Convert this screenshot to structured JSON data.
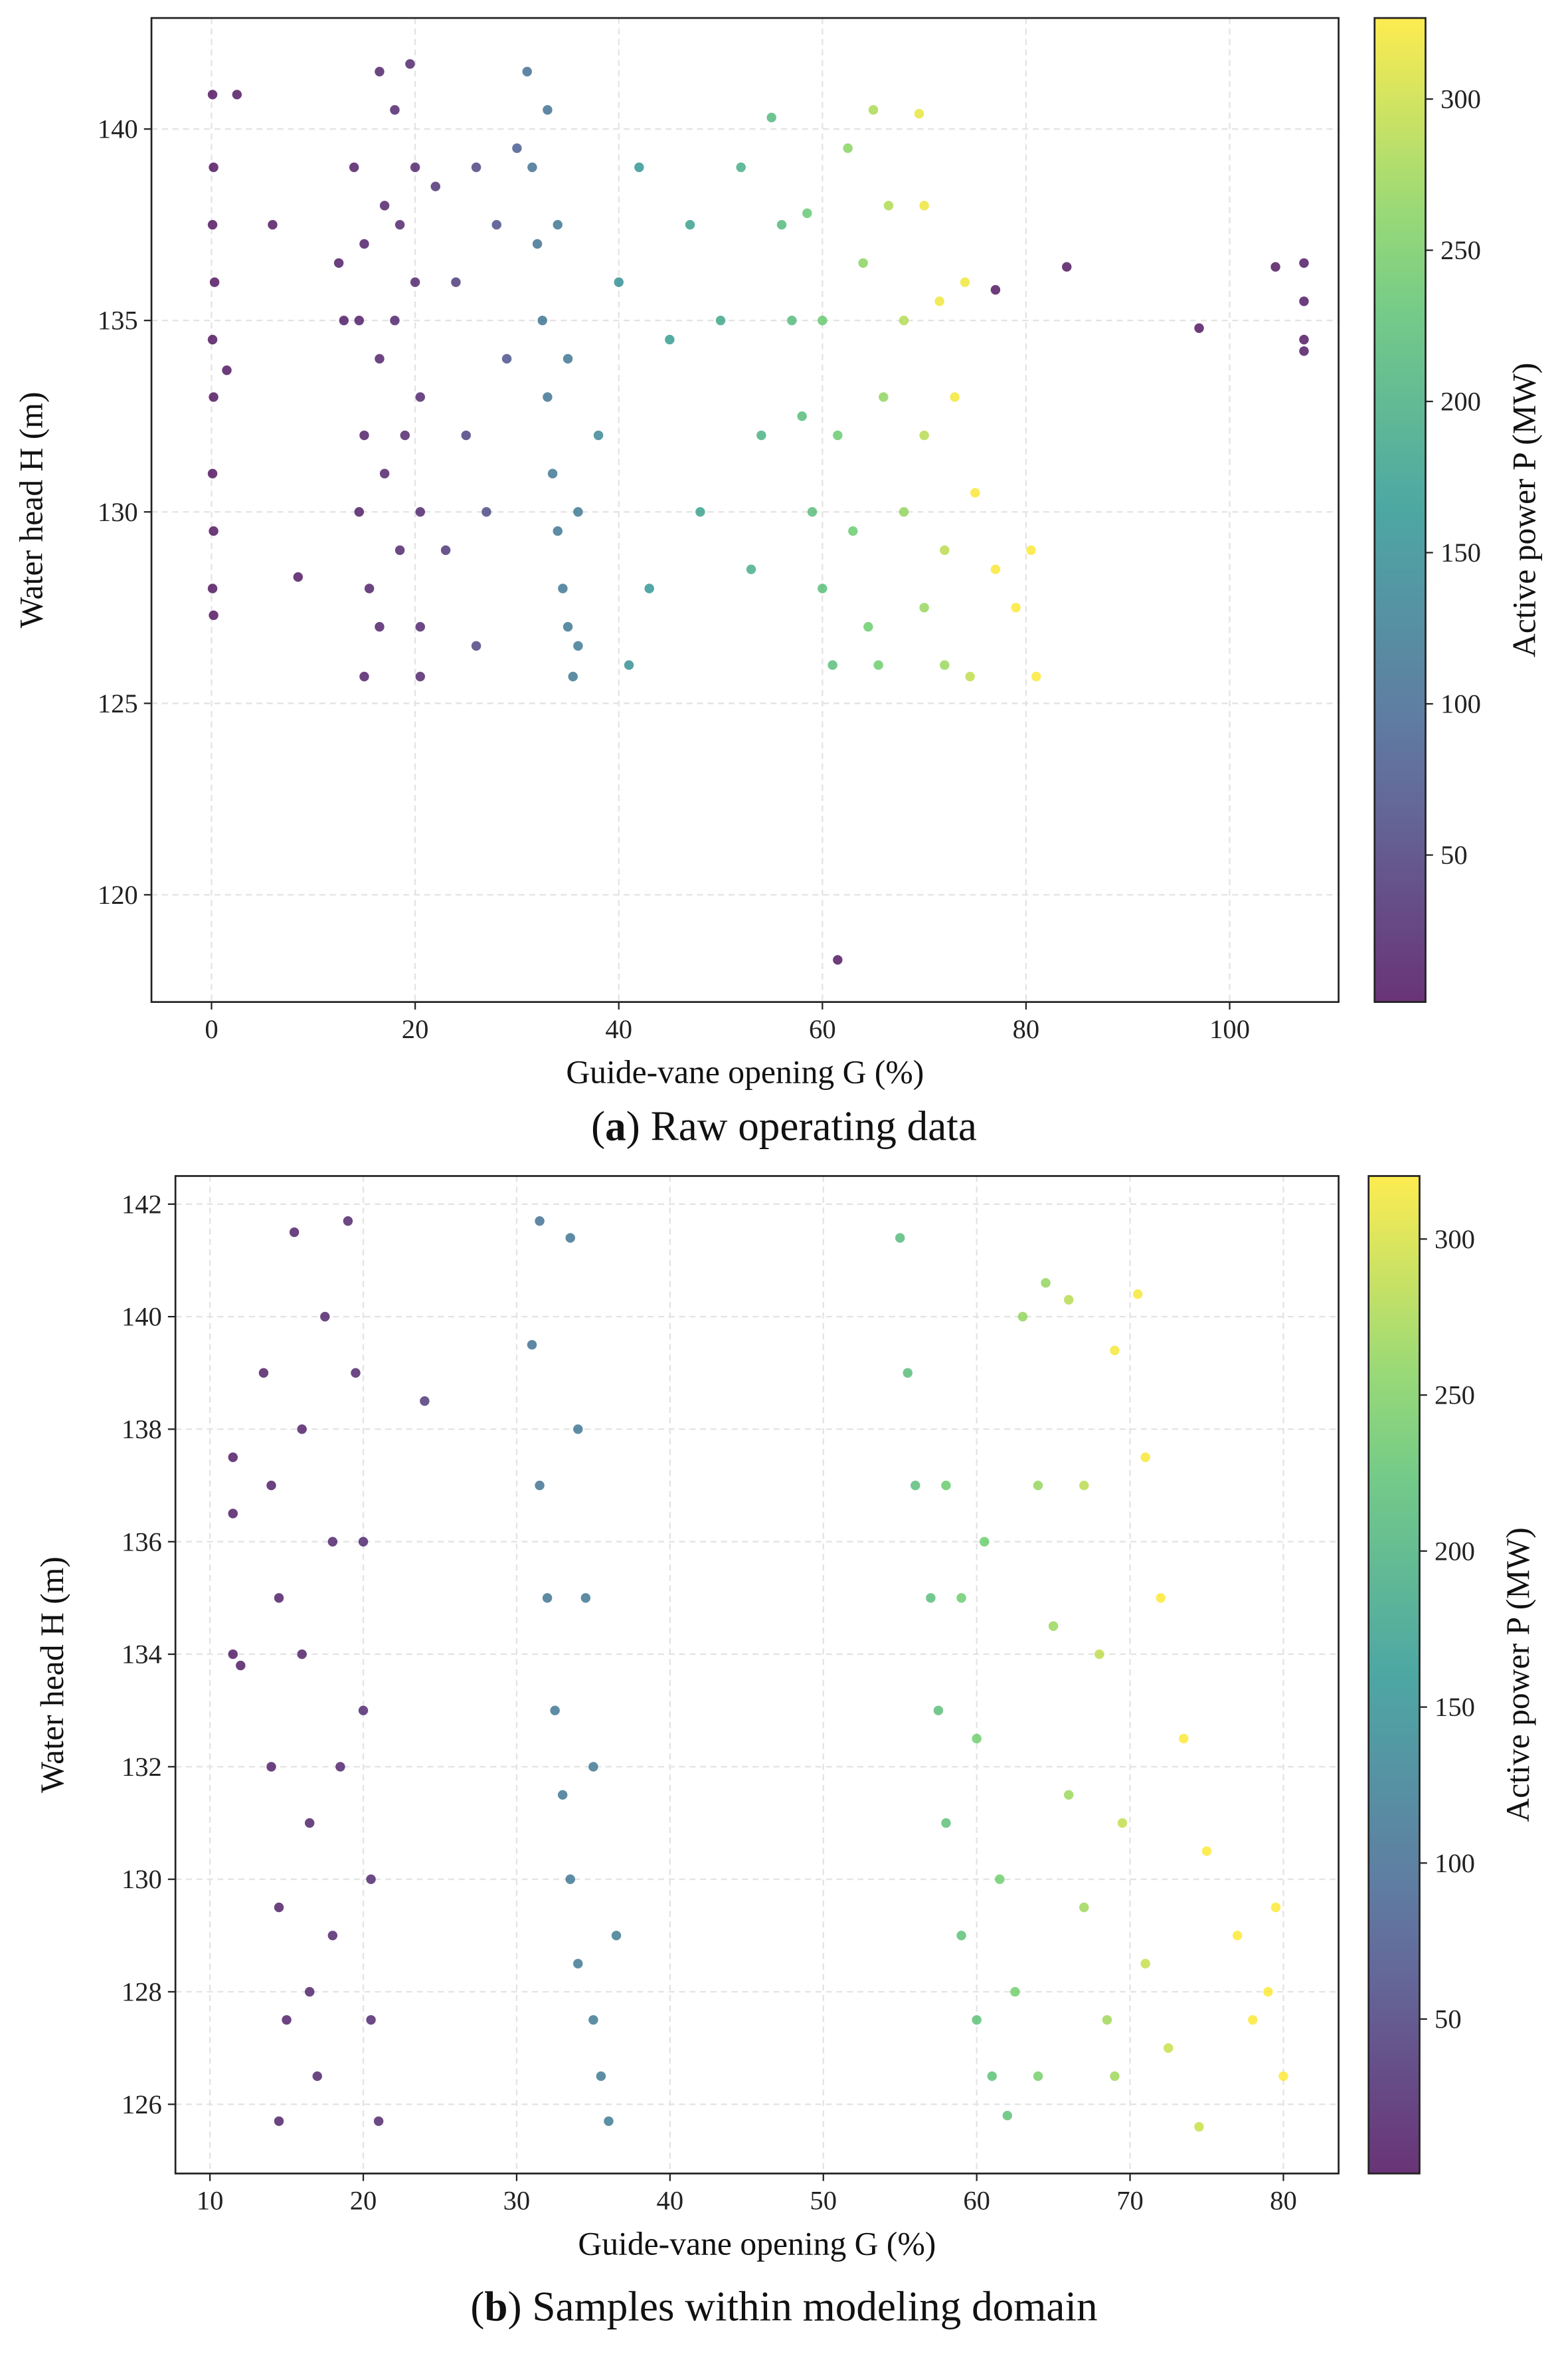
{
  "chart_data": [
    {
      "type": "scatter",
      "x_label": "Guide-vane opening G (%)",
      "y_label": "Water head H (m)",
      "colorbar_label": "Active power P (MW)",
      "caption_parts": [
        "(",
        "a",
        ") Raw operating data"
      ],
      "colormap": "viridis",
      "grid": true,
      "xlim": [
        -5.9,
        110.7
      ],
      "ylim": [
        117.2,
        142.9
      ],
      "xticks": [
        0,
        20,
        40,
        60,
        80,
        100
      ],
      "yticks": [
        120,
        125,
        130,
        135,
        140
      ],
      "clim": [
        1.4,
        326.8
      ],
      "cticks": [
        50,
        100,
        150,
        200,
        250,
        300
      ],
      "x": [
        0.1,
        0.2,
        0.1,
        0.3,
        0.1,
        0.2,
        0.1,
        0.2,
        0.1,
        0.2,
        1.5,
        2.5,
        6,
        8.5,
        61.5,
        84,
        77,
        97,
        104.5,
        107.3,
        107.3,
        107.3,
        107.3,
        14,
        15,
        14.5,
        15,
        14.5,
        15.5,
        15,
        16.5,
        17,
        16.5,
        17,
        16.5,
        18,
        18.5,
        18,
        19,
        18.5,
        19.5,
        20,
        20,
        20.5,
        20.5,
        20.5,
        20.5,
        12.5,
        13,
        22,
        24,
        26,
        25,
        28,
        29,
        27,
        23,
        30,
        26,
        31,
        31.5,
        32,
        32.5,
        33,
        33.5,
        34,
        34.5,
        35,
        35.5,
        33,
        34,
        35,
        36,
        36,
        38,
        40,
        42,
        43,
        45,
        47,
        48,
        50,
        52,
        53,
        41,
        54,
        55,
        56,
        57,
        58,
        59,
        60,
        61,
        58.5,
        60,
        61.5,
        63,
        64.5,
        65.5,
        62.5,
        64,
        66,
        68,
        70,
        72,
        65,
        66.5,
        68,
        70,
        72,
        74.5,
        69.5,
        70,
        71.5,
        73,
        75,
        77,
        79,
        81,
        80.5,
        74
      ],
      "y": [
        140.9,
        139,
        137.5,
        136,
        134.5,
        133,
        131,
        129.5,
        128,
        127.3,
        133.7,
        140.9,
        137.5,
        128.3,
        118.3,
        136.4,
        135.8,
        134.8,
        136.4,
        136.5,
        135.5,
        134.5,
        134.2,
        139,
        137,
        135,
        132,
        130,
        128,
        125.7,
        141.5,
        138,
        134,
        131,
        127,
        140.5,
        137.5,
        135,
        132,
        129,
        141.7,
        139,
        136,
        133,
        130,
        127,
        125.7,
        136.5,
        135,
        138.5,
        136,
        139,
        132,
        137.5,
        134,
        130,
        129,
        139.5,
        126.5,
        141.5,
        139,
        137,
        135,
        133,
        131,
        129.5,
        128,
        127,
        125.7,
        140.5,
        137.5,
        134,
        130,
        126.5,
        132,
        136,
        139,
        128,
        134.5,
        137.5,
        130,
        135,
        139,
        128.5,
        126,
        132,
        140.3,
        137.5,
        135,
        132.5,
        130,
        128,
        126,
        137.8,
        135,
        132,
        129.5,
        127,
        126,
        139.5,
        136.5,
        133,
        130,
        127.5,
        126,
        140.5,
        138,
        135,
        132,
        129,
        125.7,
        140.4,
        138,
        135.5,
        133,
        130.5,
        128.5,
        127.5,
        125.7,
        129,
        136
      ],
      "power": [
        3,
        3,
        3,
        3,
        3,
        3,
        3,
        3,
        3,
        3,
        5,
        5,
        5,
        5,
        5,
        5,
        5,
        5,
        5,
        8,
        8,
        8,
        8,
        12,
        14,
        12,
        14,
        12,
        15,
        14,
        18,
        18,
        17,
        18,
        17,
        20,
        20,
        19,
        21,
        20,
        22,
        22,
        22,
        22,
        22,
        22,
        22,
        10,
        10,
        35,
        45,
        55,
        50,
        65,
        70,
        60,
        40,
        80,
        55,
        105,
        108,
        110,
        112,
        113,
        115,
        116,
        117,
        118,
        118,
        110,
        114,
        116,
        120,
        120,
        140,
        150,
        160,
        160,
        170,
        175,
        178,
        185,
        195,
        195,
        150,
        200,
        212,
        214,
        216,
        218,
        220,
        222,
        222,
        238,
        240,
        242,
        244,
        245,
        246,
        262,
        264,
        266,
        268,
        270,
        272,
        282,
        284,
        286,
        288,
        290,
        292,
        315,
        318,
        320,
        322,
        324,
        325,
        326,
        326,
        326,
        320
      ]
    },
    {
      "type": "scatter",
      "x_label": "Guide-vane opening G (%)",
      "y_label": "Water head H (m)",
      "colorbar_label": "Active power P (MW)",
      "caption_parts": [
        "(",
        "b",
        ") Samples within modeling domain"
      ],
      "colormap": "viridis",
      "grid": true,
      "xlim": [
        7.75,
        83.6
      ],
      "ylim": [
        124.77,
        142.5
      ],
      "xticks": [
        10,
        20,
        30,
        40,
        50,
        60,
        70,
        80
      ],
      "yticks": [
        126,
        128,
        130,
        132,
        134,
        136,
        138,
        140,
        142
      ],
      "clim": [
        0.5,
        320.2
      ],
      "cticks": [
        50,
        100,
        150,
        200,
        250,
        300
      ],
      "x": [
        11.5,
        11.5,
        11.5,
        12,
        13.5,
        14,
        14.5,
        14,
        14.5,
        15,
        14.5,
        15.5,
        16,
        16,
        16.5,
        16.5,
        17,
        17.5,
        18,
        18.5,
        18,
        19,
        19.5,
        20,
        20,
        20.5,
        20.5,
        21,
        24,
        31.5,
        31,
        31.5,
        32,
        32.5,
        33,
        33.5,
        34,
        35,
        35.5,
        36,
        33.5,
        34,
        34.5,
        35,
        36.5,
        55,
        55.5,
        56,
        57,
        57.5,
        58,
        59,
        60,
        61,
        62,
        58,
        59,
        60,
        61.5,
        62.5,
        64,
        60.5,
        63,
        64,
        65,
        66,
        67,
        68.5,
        69,
        64.5,
        66,
        67,
        68,
        69.5,
        71,
        72.5,
        74.5,
        69,
        70.5,
        71,
        72,
        73.5,
        75,
        77,
        79,
        80,
        79.5,
        78
      ],
      "y": [
        137.5,
        136.5,
        134,
        133.8,
        139,
        137,
        135,
        132,
        129.5,
        127.5,
        125.7,
        141.5,
        138,
        134,
        131,
        128,
        126.5,
        140,
        136,
        132,
        129,
        141.7,
        139,
        136,
        133,
        130,
        127.5,
        125.7,
        138.5,
        141.7,
        139.5,
        137,
        135,
        133,
        131.5,
        130,
        128.5,
        127.5,
        126.5,
        125.7,
        141.4,
        138,
        135,
        132,
        129,
        141.4,
        139,
        137,
        135,
        133,
        131,
        129,
        127.5,
        126.5,
        125.8,
        137,
        135,
        132.5,
        130,
        128,
        126.5,
        136,
        140,
        137,
        134.5,
        131.5,
        129.5,
        127.5,
        126.5,
        140.6,
        140.3,
        137,
        134,
        131,
        128.5,
        127,
        125.6,
        139.4,
        140.4,
        137.5,
        135,
        132.5,
        130.5,
        129,
        128,
        126.5,
        129.5,
        127.5
      ],
      "power": [
        8,
        8,
        8,
        8,
        12,
        12,
        13,
        13,
        13,
        14,
        14,
        15,
        16,
        16,
        17,
        17,
        17,
        18,
        19,
        19,
        19,
        20,
        21,
        22,
        22,
        22,
        22,
        22,
        40,
        105,
        105,
        108,
        110,
        112,
        114,
        115,
        116,
        118,
        118,
        120,
        110,
        112,
        114,
        116,
        120,
        212,
        214,
        215,
        216,
        218,
        220,
        221,
        222,
        222,
        222,
        238,
        240,
        242,
        243,
        244,
        246,
        240,
        262,
        264,
        266,
        268,
        269,
        270,
        270,
        262,
        282,
        284,
        286,
        288,
        290,
        292,
        293,
        315,
        316,
        318,
        320,
        322,
        324,
        325,
        326,
        326,
        326,
        325
      ]
    }
  ]
}
